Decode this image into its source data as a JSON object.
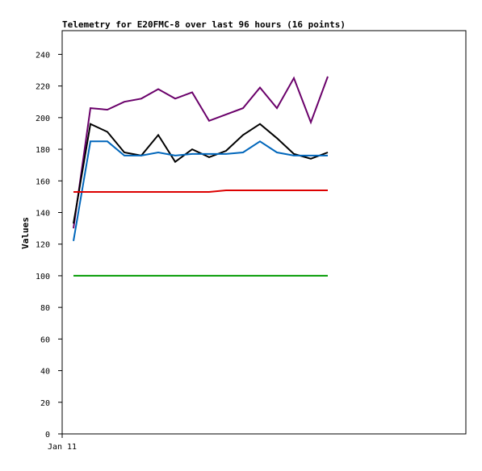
{
  "chart_data": {
    "type": "line",
    "title": "Telemetry for E20FMC-8 over last 96 hours (16 points)",
    "xlabel": "",
    "ylabel": "Values",
    "ylim": [
      0,
      255
    ],
    "x_tick_labels": [
      "Jan 11"
    ],
    "y_ticks": [
      0,
      20,
      40,
      60,
      80,
      100,
      120,
      140,
      160,
      180,
      200,
      220,
      240
    ],
    "grid": false,
    "legend": "none",
    "series": [
      {
        "color": "#6a006a",
        "values": [
          130,
          206,
          205,
          210,
          212,
          218,
          212,
          216,
          198,
          202,
          206,
          219,
          206,
          225,
          197,
          226
        ]
      },
      {
        "color": "#000000",
        "values": [
          133,
          196,
          191,
          178,
          176,
          189,
          172,
          180,
          175,
          179,
          189,
          196,
          187,
          177,
          174,
          178
        ]
      },
      {
        "color": "#0066bb",
        "values": [
          122,
          185,
          185,
          176,
          176,
          178,
          176,
          177,
          177,
          177,
          178,
          185,
          178,
          176,
          176,
          176
        ]
      },
      {
        "color": "#dd0000",
        "values": [
          153,
          153,
          153,
          153,
          153,
          153,
          153,
          153,
          153,
          154,
          154,
          154,
          154,
          154,
          154,
          154
        ]
      },
      {
        "color": "#009900",
        "values": [
          100,
          100,
          100,
          100,
          100,
          100,
          100,
          100,
          100,
          100,
          100,
          100,
          100,
          100,
          100,
          100
        ]
      }
    ]
  }
}
